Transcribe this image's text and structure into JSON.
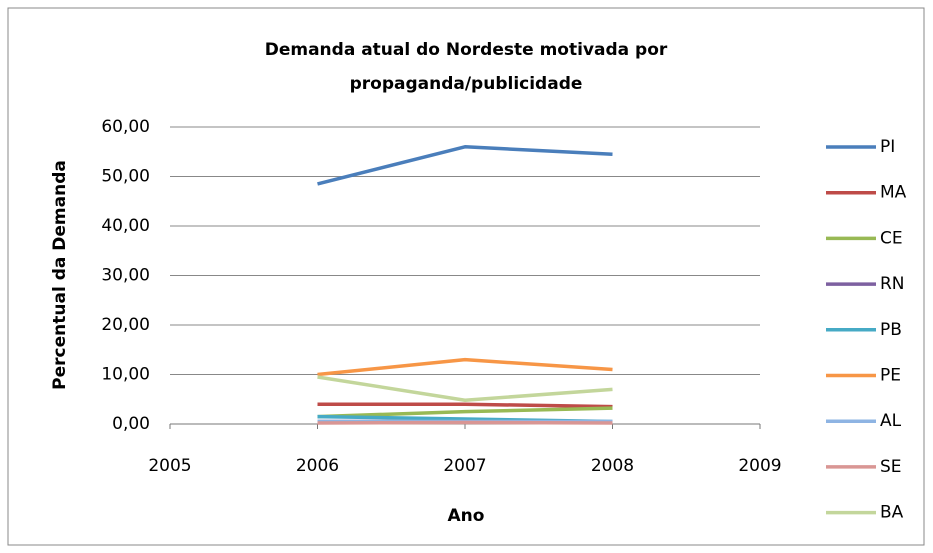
{
  "chart_data": {
    "type": "line",
    "title": [
      "Demanda atual do Nordeste motivada por",
      "propaganda/publicidade"
    ],
    "x_label": "Ano",
    "y_label": "Percentual da Demanda",
    "x": [
      2006,
      2007,
      2008
    ],
    "xlim": [
      2005,
      2009
    ],
    "xticks": [
      2005,
      2006,
      2007,
      2008,
      2009
    ],
    "ylim": [
      0,
      60
    ],
    "yticks": [
      {
        "value": 0,
        "label": "0,00"
      },
      {
        "value": 10,
        "label": "10,00"
      },
      {
        "value": 20,
        "label": "20,00"
      },
      {
        "value": 30,
        "label": "30,00"
      },
      {
        "value": 40,
        "label": "40,00"
      },
      {
        "value": 50,
        "label": "50,00"
      },
      {
        "value": 60,
        "label": "60,00"
      }
    ],
    "grid": true,
    "legend": "right",
    "series": [
      {
        "name": "PI",
        "color": "#4a7ebb",
        "values": [
          48.5,
          56,
          54.5
        ]
      },
      {
        "name": "MA",
        "color": "#be4b48",
        "values": [
          4,
          4,
          3.5
        ]
      },
      {
        "name": "CE",
        "color": "#98b954",
        "values": [
          1.5,
          2.5,
          3.2
        ]
      },
      {
        "name": "RN",
        "color": "#7d60a0",
        "values": [
          0.5,
          0.5,
          0.3
        ]
      },
      {
        "name": "PB",
        "color": "#46aac5",
        "values": [
          1.5,
          1,
          0.5
        ]
      },
      {
        "name": "PE",
        "color": "#f79646",
        "values": [
          10,
          13,
          11
        ]
      },
      {
        "name": "AL",
        "color": "#8eb4e3",
        "values": [
          0.5,
          0.5,
          0.5
        ]
      },
      {
        "name": "SE",
        "color": "#d99694",
        "values": [
          0.2,
          0.3,
          0.2
        ]
      },
      {
        "name": "BA",
        "color": "#c3d69b",
        "values": [
          9.5,
          4.8,
          7
        ]
      }
    ]
  }
}
